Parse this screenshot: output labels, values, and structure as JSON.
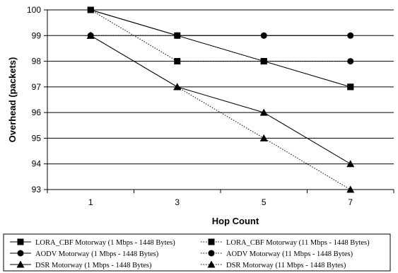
{
  "chart_data": {
    "type": "line",
    "title": "",
    "xlabel": "Hop Count",
    "ylabel": "Overhead (packets)",
    "x": [
      1,
      3,
      5,
      7
    ],
    "x_tick_labels": [
      "1",
      "3",
      "5",
      "7"
    ],
    "ylim": [
      93,
      100
    ],
    "y_tick_labels": [
      "93",
      "94",
      "95",
      "96",
      "97",
      "98",
      "99",
      "100"
    ],
    "grid": "horizontal",
    "legend_position": "bottom",
    "series": [
      {
        "name": "LORA_CBF Motorway (1 Mbps - 1448 Bytes)",
        "values": [
          100,
          99,
          98,
          97
        ],
        "marker": "square",
        "line": "solid",
        "color": "#000000"
      },
      {
        "name": "LORA_CBF Motorway (11 Mbps - 1448 Bytes)",
        "values": [
          100,
          98,
          98,
          97
        ],
        "marker": "square",
        "line": "dotted",
        "color": "#000000"
      },
      {
        "name": "AODV Motorway (1 Mbps - 1448 Bytes)",
        "values": [
          100,
          99,
          99,
          99
        ],
        "marker": "circle",
        "line": "solid",
        "color": "#000000"
      },
      {
        "name": "AODV Motorway (11 Mbps - 1448 Bytes)",
        "values": [
          99,
          99,
          98,
          98
        ],
        "marker": "circle",
        "line": "dotted",
        "color": "#000000"
      },
      {
        "name": "DSR Motorway (1 Mbps - 1448 Bytes)",
        "values": [
          99,
          97,
          96,
          94
        ],
        "marker": "triangle",
        "line": "solid",
        "color": "#000000"
      },
      {
        "name": "DSR Motorway (11 Mbps - 1448 Bytes)",
        "values": [
          99,
          97,
          95,
          93
        ],
        "marker": "triangle",
        "line": "dotted",
        "color": "#000000"
      }
    ]
  }
}
